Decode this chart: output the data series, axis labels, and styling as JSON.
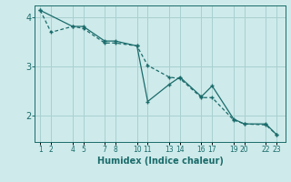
{
  "xlabel": "Humidex (Indice chaleur)",
  "bg_color": "#ceeaea",
  "grid_color": "#a8d0d0",
  "line_color": "#1a6b6b",
  "line1_x": [
    1,
    4,
    5,
    7,
    8,
    10,
    11,
    13,
    14,
    16,
    17,
    19,
    20,
    22,
    23
  ],
  "line1_y": [
    4.15,
    3.82,
    3.82,
    3.52,
    3.52,
    3.42,
    2.28,
    2.63,
    2.78,
    2.38,
    2.6,
    1.92,
    1.82,
    1.82,
    1.6
  ],
  "line2_x": [
    1,
    2,
    4,
    5,
    7,
    8,
    10,
    11,
    13,
    14,
    16,
    17,
    19,
    20,
    22,
    23
  ],
  "line2_y": [
    4.15,
    3.7,
    3.82,
    3.78,
    3.48,
    3.48,
    3.42,
    3.02,
    2.78,
    2.75,
    2.36,
    2.36,
    1.9,
    1.82,
    1.8,
    1.6
  ],
  "ylim": [
    1.45,
    4.25
  ],
  "xlim": [
    0.5,
    23.8
  ],
  "yticks": [
    2,
    3,
    4
  ],
  "xticks": [
    1,
    2,
    4,
    5,
    7,
    8,
    10,
    11,
    13,
    14,
    16,
    17,
    19,
    20,
    22,
    23
  ]
}
